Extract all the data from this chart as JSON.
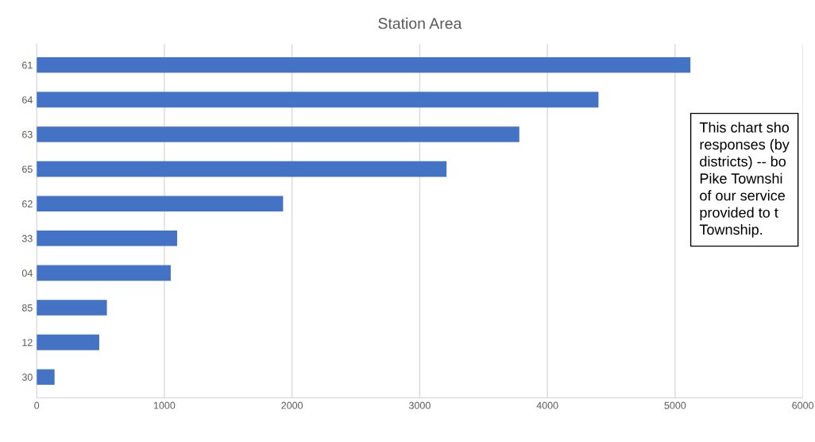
{
  "chart_data": {
    "type": "bar",
    "orientation": "horizontal",
    "title": "Station Area",
    "categories": [
      "61",
      "64",
      "63",
      "65",
      "62",
      "33",
      "04",
      "85",
      "12",
      "30"
    ],
    "values": [
      5120,
      4400,
      3780,
      3210,
      1930,
      1100,
      1050,
      550,
      490,
      140
    ],
    "color": "#4472c4",
    "xlim": [
      0,
      6000
    ],
    "xticks": [
      0,
      1000,
      2000,
      3000,
      4000,
      5000,
      6000
    ],
    "grid": "x",
    "annotations": [
      "This chart sho\nresponses (by\ndistricts) -- bo\nPike Townshi\nof our service\nprovided to t\nTownship."
    ]
  }
}
